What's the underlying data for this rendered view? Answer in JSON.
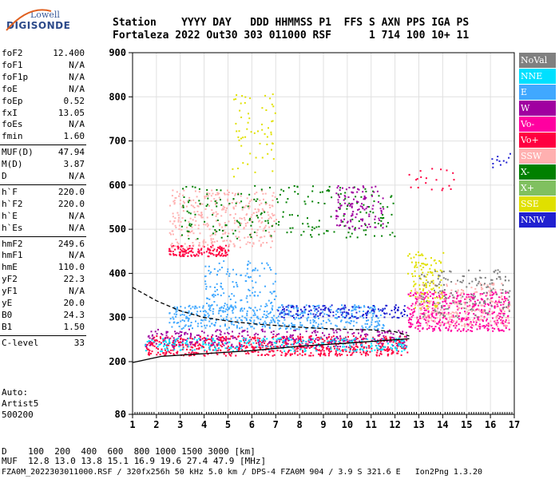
{
  "logo": {
    "line1": "Lowell",
    "line2": "DIGISONDE"
  },
  "header": {
    "labels": [
      "Station",
      "YYYY",
      "DAY",
      "DDD",
      "HHMMSS",
      "P1",
      "FFS",
      "S",
      "AXN",
      "PPS",
      "IGA",
      "PS"
    ],
    "values": [
      "Fortaleza",
      "2022",
      "Out30",
      "303",
      "011000",
      "RSF",
      "",
      "1",
      "714",
      "100",
      "10+",
      "11"
    ]
  },
  "params": [
    {
      "k": "foF2",
      "v": "12.400"
    },
    {
      "k": "foF1",
      "v": "N/A"
    },
    {
      "k": "foF1p",
      "v": "N/A"
    },
    {
      "k": "foE",
      "v": "N/A"
    },
    {
      "k": "foEp",
      "v": "0.52"
    },
    {
      "k": "fxI",
      "v": "13.05"
    },
    {
      "k": "foEs",
      "v": "N/A"
    },
    {
      "k": "fmin",
      "v": "1.60"
    },
    {
      "k": "MUF(D)",
      "v": "47.94"
    },
    {
      "k": "M(D)",
      "v": "3.87"
    },
    {
      "k": "D",
      "v": "N/A"
    },
    {
      "k": "h`F",
      "v": "220.0"
    },
    {
      "k": "h`F2",
      "v": "220.0"
    },
    {
      "k": "h`E",
      "v": "N/A"
    },
    {
      "k": "h`Es",
      "v": "N/A"
    },
    {
      "k": "hmF2",
      "v": "249.6"
    },
    {
      "k": "hmF1",
      "v": "N/A"
    },
    {
      "k": "hmE",
      "v": "110.0"
    },
    {
      "k": "yF2",
      "v": "22.3"
    },
    {
      "k": "yF1",
      "v": "N/A"
    },
    {
      "k": "yE",
      "v": "20.0"
    },
    {
      "k": "B0",
      "v": "24.3"
    },
    {
      "k": "B1",
      "v": "1.50"
    },
    {
      "k": "C-level",
      "v": "33"
    }
  ],
  "auto": {
    "line1": "Auto:",
    "line2": "Artist5",
    "line3": "500200"
  },
  "legend": [
    {
      "label": "NoVal",
      "color": "#808080"
    },
    {
      "label": "NNE",
      "color": "#00e0ff"
    },
    {
      "label": "E",
      "color": "#40a8ff"
    },
    {
      "label": "W",
      "color": "#a000a0"
    },
    {
      "label": "Vo-",
      "color": "#ff00a0"
    },
    {
      "label": "Vo+",
      "color": "#ff0040"
    },
    {
      "label": "SSW",
      "color": "#ffb0b0"
    },
    {
      "label": "X-",
      "color": "#008000"
    },
    {
      "label": "X+",
      "color": "#80c060"
    },
    {
      "label": "SSE",
      "color": "#e0e000"
    },
    {
      "label": "NNW",
      "color": "#2020d0"
    }
  ],
  "footer": {
    "line1": "D    100  200  400  600  800 1000 1500 3000 [km]",
    "line2": "MUF  12.8 13.0 13.8 15.1 16.9 19.6 27.4 47.9 [MHz]",
    "line3": "FZA0M_2022303011000.RSF / 320fx256h 50 kHz 5.0 km / DPS-4 FZA0M 904 / 3.9 S 321.6 E   Ion2Png 1.3.20"
  },
  "chart_data": {
    "type": "scatter",
    "xlim": [
      1,
      17
    ],
    "ylim": [
      80,
      900
    ],
    "xticks": [
      "1",
      "2",
      "3",
      "4",
      "5",
      "6",
      "7",
      "8",
      "9",
      "10",
      "11",
      "12",
      "13",
      "14",
      "15",
      "16",
      "17"
    ],
    "yticks": [
      "80",
      "200",
      "300",
      "400",
      "500",
      "600",
      "700",
      "800",
      "900"
    ],
    "grid": true,
    "legend_position": "right",
    "clusters": [
      {
        "color": "#ff0040",
        "x": [
          1.5,
          12.5
        ],
        "y": [
          215,
          260
        ],
        "n": 700
      },
      {
        "color": "#a000a0",
        "x": [
          1.5,
          12.5
        ],
        "y": [
          235,
          275
        ],
        "n": 300
      },
      {
        "color": "#00e0ff",
        "x": [
          1.5,
          12.5
        ],
        "y": [
          225,
          255
        ],
        "n": 250
      },
      {
        "color": "#40a8ff",
        "x": [
          2.5,
          11.5
        ],
        "y": [
          275,
          330
        ],
        "n": 500
      },
      {
        "color": "#2020d0",
        "x": [
          7,
          12.5
        ],
        "y": [
          300,
          330
        ],
        "n": 150
      },
      {
        "color": "#40a8ff",
        "x": [
          4,
          7
        ],
        "y": [
          330,
          430
        ],
        "n": 120
      },
      {
        "color": "#ff0040",
        "x": [
          2.5,
          5
        ],
        "y": [
          440,
          465
        ],
        "n": 140
      },
      {
        "color": "#ffb0b0",
        "x": [
          2.5,
          7
        ],
        "y": [
          460,
          590
        ],
        "n": 350
      },
      {
        "color": "#008000",
        "x": [
          3,
          12
        ],
        "y": [
          480,
          600
        ],
        "n": 220
      },
      {
        "color": "#a000a0",
        "x": [
          9.5,
          11.5
        ],
        "y": [
          500,
          600
        ],
        "n": 120
      },
      {
        "color": "#e0e000",
        "x": [
          5,
          7
        ],
        "y": [
          620,
          810
        ],
        "n": 60
      },
      {
        "color": "#ff00a0",
        "x": [
          12.5,
          16.8
        ],
        "y": [
          270,
          360
        ],
        "n": 450
      },
      {
        "color": "#ffb0b0",
        "x": [
          12.8,
          16.8
        ],
        "y": [
          280,
          380
        ],
        "n": 250
      },
      {
        "color": "#e0e000",
        "x": [
          12.5,
          14
        ],
        "y": [
          320,
          450
        ],
        "n": 120
      },
      {
        "color": "#808080",
        "x": [
          13,
          16.8
        ],
        "y": [
          300,
          410
        ],
        "n": 150
      },
      {
        "color": "#2020d0",
        "x": [
          16,
          16.8
        ],
        "y": [
          640,
          680
        ],
        "n": 12
      },
      {
        "color": "#ff0040",
        "x": [
          12.5,
          14.5
        ],
        "y": [
          590,
          640
        ],
        "n": 20
      }
    ],
    "curves": [
      {
        "style": "solid",
        "points": [
          [
            1,
            198
          ],
          [
            2.2,
            212
          ],
          [
            4,
            218
          ],
          [
            6,
            225
          ],
          [
            8,
            235
          ],
          [
            10,
            242
          ],
          [
            12.6,
            252
          ]
        ]
      },
      {
        "style": "dashed",
        "points": [
          [
            1,
            368
          ],
          [
            2,
            338
          ],
          [
            3,
            315
          ],
          [
            4,
            300
          ],
          [
            5,
            292
          ],
          [
            6,
            286
          ],
          [
            7,
            282
          ],
          [
            8,
            278
          ],
          [
            9,
            275
          ],
          [
            10,
            273
          ],
          [
            11,
            272
          ],
          [
            12,
            268
          ],
          [
            12.6,
            258
          ]
        ]
      }
    ]
  }
}
